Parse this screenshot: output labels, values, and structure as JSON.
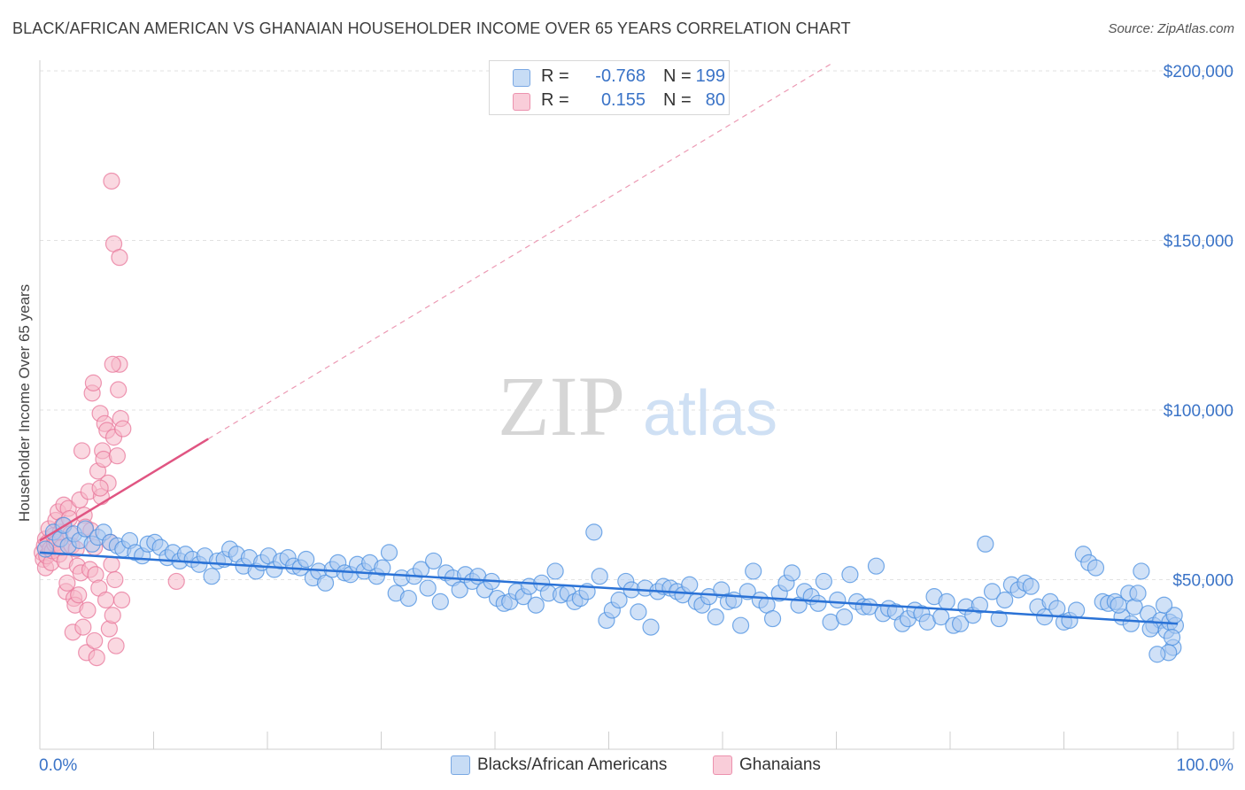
{
  "header": {
    "title": "BLACK/AFRICAN AMERICAN VS GHANAIAN HOUSEHOLDER INCOME OVER 65 YEARS CORRELATION CHART",
    "source": "Source: ZipAtlas.com"
  },
  "watermark": {
    "zip": "ZIP",
    "atlas": "atlas"
  },
  "legend_top": {
    "rows": [
      {
        "r_label": "R =",
        "r_value": "-0.768",
        "n_label": "N =",
        "n_value": "199",
        "color": "#a9c8f0"
      },
      {
        "r_label": "R =",
        "r_value": "0.155",
        "n_label": "N =",
        "n_value": "80",
        "color": "#f6b8c9"
      }
    ]
  },
  "legend_bottom": {
    "items": [
      {
        "label": "Blacks/African Americans",
        "color": "#a9c8f0"
      },
      {
        "label": "Ghanaians",
        "color": "#f6b8c9"
      }
    ]
  },
  "chart_data": {
    "type": "scatter",
    "title": "BLACK/AFRICAN AMERICAN VS GHANAIAN HOUSEHOLDER INCOME OVER 65 YEARS CORRELATION CHART",
    "xlabel": "",
    "ylabel": "Householder Income Over 65 years",
    "xlim": [
      0,
      100
    ],
    "ylim": [
      0,
      205000
    ],
    "x_tick_labels": [
      "0.0%",
      "100.0%"
    ],
    "y_ticks": [
      50000,
      100000,
      150000,
      200000
    ],
    "y_tick_labels": [
      "$50,000",
      "$100,000",
      "$150,000",
      "$200,000"
    ],
    "grid": "horizontal dashed",
    "legend_position": "top-center",
    "series": [
      {
        "name": "Blacks/African Americans",
        "color": "#4a8fe0",
        "fill": "#a9c8f0",
        "trendline": {
          "x": [
            0,
            100
          ],
          "y": [
            58000,
            37000
          ],
          "color": "#2a72d6"
        },
        "points": [
          [
            0.5,
            59000
          ],
          [
            1.2,
            64000
          ],
          [
            1.8,
            62000
          ],
          [
            2.1,
            66000
          ],
          [
            2.5,
            60000
          ],
          [
            3.0,
            63500
          ],
          [
            3.5,
            61500
          ],
          [
            4.0,
            65000
          ],
          [
            4.6,
            60500
          ],
          [
            5.1,
            62500
          ],
          [
            5.6,
            64000
          ],
          [
            6.2,
            61000
          ],
          [
            6.8,
            60000
          ],
          [
            7.3,
            59000
          ],
          [
            7.9,
            61500
          ],
          [
            8.4,
            58000
          ],
          [
            9.0,
            57000
          ],
          [
            9.5,
            60500
          ],
          [
            10.1,
            61000
          ],
          [
            10.6,
            59500
          ],
          [
            11.2,
            56500
          ],
          [
            11.7,
            58000
          ],
          [
            12.3,
            55500
          ],
          [
            12.8,
            57500
          ],
          [
            13.4,
            56000
          ],
          [
            14.0,
            54500
          ],
          [
            14.5,
            57000
          ],
          [
            15.1,
            51000
          ],
          [
            15.6,
            55500
          ],
          [
            16.2,
            56000
          ],
          [
            16.7,
            59000
          ],
          [
            17.3,
            57500
          ],
          [
            17.9,
            54000
          ],
          [
            18.4,
            56500
          ],
          [
            19.0,
            52500
          ],
          [
            19.5,
            55000
          ],
          [
            20.1,
            57000
          ],
          [
            20.6,
            53000
          ],
          [
            21.2,
            55500
          ],
          [
            21.8,
            56500
          ],
          [
            22.3,
            54000
          ],
          [
            22.9,
            53500
          ],
          [
            23.4,
            56000
          ],
          [
            24.0,
            50500
          ],
          [
            24.5,
            52500
          ],
          [
            25.1,
            49000
          ],
          [
            25.7,
            53000
          ],
          [
            26.2,
            55000
          ],
          [
            26.8,
            52000
          ],
          [
            27.3,
            51500
          ],
          [
            27.9,
            54500
          ],
          [
            28.5,
            52500
          ],
          [
            29.0,
            55000
          ],
          [
            29.6,
            51000
          ],
          [
            30.1,
            53500
          ],
          [
            30.7,
            58000
          ],
          [
            31.3,
            46000
          ],
          [
            31.8,
            50500
          ],
          [
            32.4,
            44500
          ],
          [
            32.9,
            51000
          ],
          [
            33.5,
            53000
          ],
          [
            34.1,
            47500
          ],
          [
            34.6,
            55500
          ],
          [
            35.2,
            43500
          ],
          [
            35.7,
            52000
          ],
          [
            36.3,
            50500
          ],
          [
            36.9,
            47000
          ],
          [
            37.4,
            51500
          ],
          [
            38.0,
            49500
          ],
          [
            38.5,
            51000
          ],
          [
            39.1,
            47000
          ],
          [
            39.7,
            49500
          ],
          [
            40.2,
            44500
          ],
          [
            40.8,
            43000
          ],
          [
            41.3,
            43500
          ],
          [
            41.9,
            46500
          ],
          [
            42.5,
            45000
          ],
          [
            43.0,
            48000
          ],
          [
            43.6,
            42500
          ],
          [
            44.1,
            49000
          ],
          [
            44.7,
            46000
          ],
          [
            45.3,
            52500
          ],
          [
            45.8,
            45500
          ],
          [
            46.4,
            46000
          ],
          [
            47.0,
            43500
          ],
          [
            47.5,
            44500
          ],
          [
            48.1,
            46500
          ],
          [
            48.7,
            64000
          ],
          [
            49.2,
            51000
          ],
          [
            49.8,
            38000
          ],
          [
            50.3,
            41000
          ],
          [
            50.9,
            44000
          ],
          [
            51.5,
            49500
          ],
          [
            52.0,
            47000
          ],
          [
            52.6,
            40500
          ],
          [
            53.2,
            47500
          ],
          [
            53.7,
            36000
          ],
          [
            54.3,
            46500
          ],
          [
            54.8,
            48000
          ],
          [
            55.4,
            47500
          ],
          [
            56.0,
            46500
          ],
          [
            56.5,
            45500
          ],
          [
            57.1,
            48500
          ],
          [
            57.7,
            43500
          ],
          [
            58.2,
            42500
          ],
          [
            58.8,
            45000
          ],
          [
            59.4,
            39000
          ],
          [
            59.9,
            47000
          ],
          [
            60.5,
            43500
          ],
          [
            61.0,
            44000
          ],
          [
            61.6,
            36500
          ],
          [
            62.2,
            46500
          ],
          [
            62.7,
            52500
          ],
          [
            63.3,
            44000
          ],
          [
            63.9,
            42500
          ],
          [
            64.4,
            38500
          ],
          [
            65.0,
            46000
          ],
          [
            65.6,
            49000
          ],
          [
            66.1,
            52000
          ],
          [
            66.7,
            42500
          ],
          [
            67.2,
            46500
          ],
          [
            67.8,
            45000
          ],
          [
            68.4,
            43000
          ],
          [
            68.9,
            49500
          ],
          [
            69.5,
            37500
          ],
          [
            70.1,
            44000
          ],
          [
            70.7,
            39000
          ],
          [
            71.2,
            51500
          ],
          [
            71.8,
            43500
          ],
          [
            72.4,
            42000
          ],
          [
            72.9,
            42000
          ],
          [
            73.5,
            54000
          ],
          [
            74.1,
            40000
          ],
          [
            74.6,
            41500
          ],
          [
            75.2,
            40500
          ],
          [
            75.8,
            37000
          ],
          [
            76.3,
            38500
          ],
          [
            76.9,
            41000
          ],
          [
            77.5,
            40000
          ],
          [
            78.0,
            37500
          ],
          [
            78.6,
            45000
          ],
          [
            79.2,
            39000
          ],
          [
            79.7,
            43500
          ],
          [
            80.3,
            36500
          ],
          [
            80.9,
            37000
          ],
          [
            81.4,
            42000
          ],
          [
            82.0,
            39500
          ],
          [
            82.6,
            42500
          ],
          [
            83.1,
            60500
          ],
          [
            83.7,
            46500
          ],
          [
            84.3,
            38500
          ],
          [
            84.8,
            44000
          ],
          [
            85.4,
            48500
          ],
          [
            86.0,
            47000
          ],
          [
            86.6,
            49000
          ],
          [
            87.1,
            48000
          ],
          [
            87.7,
            42000
          ],
          [
            88.3,
            39000
          ],
          [
            88.8,
            43500
          ],
          [
            89.4,
            41500
          ],
          [
            90.0,
            37500
          ],
          [
            90.5,
            38000
          ],
          [
            91.1,
            41000
          ],
          [
            91.7,
            57500
          ],
          [
            92.2,
            55000
          ],
          [
            92.8,
            53500
          ],
          [
            93.4,
            43500
          ],
          [
            93.9,
            43000
          ],
          [
            94.5,
            43500
          ],
          [
            95.1,
            39000
          ],
          [
            95.7,
            46000
          ],
          [
            96.2,
            42000
          ],
          [
            96.8,
            52500
          ],
          [
            97.4,
            40000
          ],
          [
            97.9,
            36500
          ],
          [
            98.5,
            38000
          ],
          [
            99.0,
            35000
          ],
          [
            99.3,
            37500
          ],
          [
            99.6,
            30000
          ],
          [
            99.8,
            36500
          ],
          [
            99.5,
            33000
          ],
          [
            99.2,
            28500
          ],
          [
            99.7,
            39500
          ],
          [
            98.8,
            42500
          ],
          [
            98.2,
            28000
          ],
          [
            97.6,
            35500
          ],
          [
            96.5,
            46000
          ],
          [
            95.9,
            37000
          ],
          [
            94.8,
            42500
          ]
        ]
      },
      {
        "name": "Ghanaians",
        "color": "#e8769a",
        "fill": "#f6b8c9",
        "trendline": {
          "x": [
            0,
            14.8
          ],
          "y": [
            61500,
            91500
          ],
          "color": "#e05582",
          "extension": {
            "x": [
              14.8,
              69.5
            ],
            "y": [
              91500,
              202000
            ]
          }
        },
        "points": [
          [
            0.2,
            58000
          ],
          [
            0.3,
            56000
          ],
          [
            0.4,
            60000
          ],
          [
            0.5,
            62000
          ],
          [
            0.5,
            53500
          ],
          [
            0.6,
            57000
          ],
          [
            0.7,
            61000
          ],
          [
            0.8,
            65000
          ],
          [
            0.9,
            59000
          ],
          [
            1.0,
            55000
          ],
          [
            1.1,
            58500
          ],
          [
            1.2,
            63000
          ],
          [
            1.3,
            60500
          ],
          [
            1.4,
            67500
          ],
          [
            1.5,
            61000
          ],
          [
            1.6,
            70000
          ],
          [
            1.7,
            57500
          ],
          [
            1.8,
            64000
          ],
          [
            1.9,
            59500
          ],
          [
            2.0,
            66000
          ],
          [
            2.1,
            72000
          ],
          [
            2.2,
            55500
          ],
          [
            2.3,
            46500
          ],
          [
            2.4,
            49000
          ],
          [
            2.5,
            71000
          ],
          [
            2.6,
            68000
          ],
          [
            2.7,
            63500
          ],
          [
            2.8,
            60000
          ],
          [
            2.9,
            34500
          ],
          [
            3.0,
            44500
          ],
          [
            3.1,
            42500
          ],
          [
            3.2,
            59000
          ],
          [
            3.3,
            54000
          ],
          [
            3.4,
            45500
          ],
          [
            3.5,
            73500
          ],
          [
            3.6,
            52000
          ],
          [
            3.7,
            88000
          ],
          [
            3.8,
            36000
          ],
          [
            3.9,
            69000
          ],
          [
            4.0,
            65500
          ],
          [
            4.1,
            28500
          ],
          [
            4.2,
            41000
          ],
          [
            4.3,
            76000
          ],
          [
            4.4,
            53000
          ],
          [
            4.5,
            64500
          ],
          [
            4.6,
            105000
          ],
          [
            4.7,
            108000
          ],
          [
            4.8,
            59500
          ],
          [
            4.9,
            51500
          ],
          [
            5.0,
            27000
          ],
          [
            5.1,
            82000
          ],
          [
            5.2,
            47500
          ],
          [
            5.3,
            99000
          ],
          [
            5.4,
            74500
          ],
          [
            5.5,
            88000
          ],
          [
            5.6,
            85500
          ],
          [
            5.7,
            96000
          ],
          [
            5.8,
            44000
          ],
          [
            5.9,
            94000
          ],
          [
            6.0,
            78500
          ],
          [
            6.1,
            35500
          ],
          [
            6.2,
            61000
          ],
          [
            6.3,
            54500
          ],
          [
            6.4,
            39500
          ],
          [
            6.5,
            92000
          ],
          [
            6.6,
            50000
          ],
          [
            6.7,
            30500
          ],
          [
            6.8,
            86500
          ],
          [
            6.9,
            106000
          ],
          [
            7.0,
            113500
          ],
          [
            7.1,
            97500
          ],
          [
            7.2,
            44000
          ],
          [
            7.3,
            94500
          ],
          [
            6.5,
            149000
          ],
          [
            7.0,
            145000
          ],
          [
            6.4,
            113500
          ],
          [
            5.3,
            77000
          ],
          [
            4.8,
            32000
          ],
          [
            12.0,
            49500
          ],
          [
            6.3,
            167500
          ]
        ]
      }
    ]
  }
}
